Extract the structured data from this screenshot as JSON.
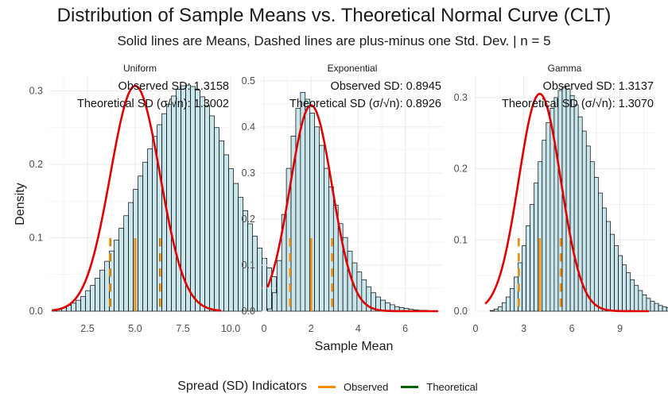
{
  "title": "Distribution of Sample Means vs. Theoretical Normal Curve (CLT)",
  "subtitle": "Solid lines are Means, Dashed lines are plus-minus one Std. Dev. | n = 5",
  "xlabel": "Sample Mean",
  "ylabel": "Density",
  "legend": {
    "title": "Spread (SD) Indicators",
    "items": [
      {
        "label": "Observed",
        "color": "#FF8C00"
      },
      {
        "label": "Theoretical",
        "color": "#006400"
      }
    ]
  },
  "colors": {
    "bar_fill": "#C8E6EC",
    "bar_stroke": "#000000",
    "curve": "#E00000",
    "observed": "#FF8C00",
    "theoretical": "#006400",
    "grid": "#EBEBEB"
  },
  "chart_data": [
    {
      "type": "bar",
      "panel": "Uniform",
      "observed_sd_label": "Observed SD: 1.3158",
      "theoretical_sd_label": "Theoretical SD (σ/√n): 1.3002",
      "xlim": [
        0.5,
        10
      ],
      "ylim": [
        0,
        0.32
      ],
      "x_ticks": [
        2.5,
        5.0,
        7.5,
        10.0
      ],
      "x_tick_labels": [
        "2.5",
        "5.0",
        "7.5",
        "10.0"
      ],
      "y_ticks": [
        0.0,
        0.1,
        0.2,
        0.3
      ],
      "y_tick_labels": [
        "0.0",
        "0.1",
        "0.2",
        "0.3"
      ],
      "bin_start": 0.65,
      "bin_width": 0.25,
      "densities": [
        0.002,
        0.003,
        0.005,
        0.008,
        0.011,
        0.015,
        0.02,
        0.028,
        0.035,
        0.045,
        0.056,
        0.068,
        0.082,
        0.097,
        0.113,
        0.13,
        0.148,
        0.166,
        0.184,
        0.203,
        0.221,
        0.238,
        0.254,
        0.269,
        0.282,
        0.293,
        0.302,
        0.307,
        0.308,
        0.306,
        0.301,
        0.292,
        0.28,
        0.266,
        0.25,
        0.232,
        0.213,
        0.194,
        0.174,
        0.155,
        0.137,
        0.119,
        0.102,
        0.086,
        0.072,
        0.059,
        0.047,
        0.037,
        0.029,
        0.022,
        0.016,
        0.011,
        0.008,
        0.005,
        0.003
      ],
      "observed_mean": 5.0,
      "observed_sd": 1.3158,
      "theoretical_mean": 5.0,
      "theoretical_sd": 1.3002,
      "curve_mean": 5.0,
      "curve_sd": 1.3002,
      "curve_range": [
        0.65,
        9.5
      ]
    },
    {
      "type": "bar",
      "panel": "Exponential",
      "observed_sd_label": "Observed SD: 0.8945",
      "theoretical_sd_label": "Theoretical SD (σ/√n): 0.8926",
      "xlim": [
        -0.1,
        7.6
      ],
      "ylim": [
        0,
        0.51
      ],
      "x_ticks": [
        0,
        2,
        4,
        6
      ],
      "x_tick_labels": [
        "0",
        "2",
        "4",
        "6"
      ],
      "y_ticks": [
        0.0,
        0.1,
        0.2,
        0.3,
        0.4,
        0.5
      ],
      "y_tick_labels": [
        "0.0",
        "0.1",
        "0.2",
        "0.3",
        "0.4",
        "0.5"
      ],
      "bin_start": 0.15,
      "bin_width": 0.2,
      "densities": [
        0.005,
        0.04,
        0.11,
        0.21,
        0.31,
        0.38,
        0.44,
        0.475,
        0.46,
        0.43,
        0.4,
        0.36,
        0.31,
        0.27,
        0.23,
        0.19,
        0.16,
        0.13,
        0.105,
        0.085,
        0.068,
        0.053,
        0.04,
        0.031,
        0.024,
        0.018,
        0.014,
        0.01,
        0.008,
        0.006,
        0.004,
        0.003,
        0.002,
        0.002
      ],
      "observed_mean": 2.0,
      "observed_sd": 0.8945,
      "theoretical_mean": 2.0,
      "theoretical_sd": 0.8926,
      "curve_mean": 2.0,
      "curve_sd": 0.8926,
      "curve_range": [
        0.15,
        7.4
      ]
    },
    {
      "type": "bar",
      "panel": "Gamma",
      "observed_sd_label": "Observed SD: 1.3137",
      "theoretical_sd_label": "Theoretical SD (σ/√n): 1.3070",
      "xlim": [
        -0.1,
        11.2
      ],
      "ylim": [
        0,
        0.33
      ],
      "x_ticks": [
        0,
        3,
        6,
        9
      ],
      "x_tick_labels": [
        "0",
        "3",
        "6",
        "9"
      ],
      "y_ticks": [
        0.0,
        0.1,
        0.2,
        0.3
      ],
      "y_tick_labels": [
        "0.0",
        "0.1",
        "0.2",
        "0.3"
      ],
      "bin_start": 0.9,
      "bin_width": 0.25,
      "densities": [
        0.001,
        0.003,
        0.006,
        0.012,
        0.02,
        0.032,
        0.048,
        0.068,
        0.092,
        0.12,
        0.15,
        0.18,
        0.21,
        0.24,
        0.265,
        0.285,
        0.3,
        0.31,
        0.315,
        0.312,
        0.303,
        0.29,
        0.273,
        0.253,
        0.232,
        0.21,
        0.188,
        0.166,
        0.145,
        0.126,
        0.108,
        0.092,
        0.078,
        0.065,
        0.054,
        0.044,
        0.036,
        0.029,
        0.023,
        0.018,
        0.014,
        0.011,
        0.008,
        0.006,
        0.005,
        0.004,
        0.003,
        0.002,
        0.002,
        0.001,
        0.001,
        0.001,
        0.001
      ],
      "observed_mean": 4.0,
      "observed_sd": 1.3137,
      "theoretical_mean": 4.0,
      "theoretical_sd": 1.307,
      "curve_mean": 4.0,
      "curve_sd": 1.307,
      "curve_range": [
        0.6,
        10.8
      ]
    }
  ]
}
